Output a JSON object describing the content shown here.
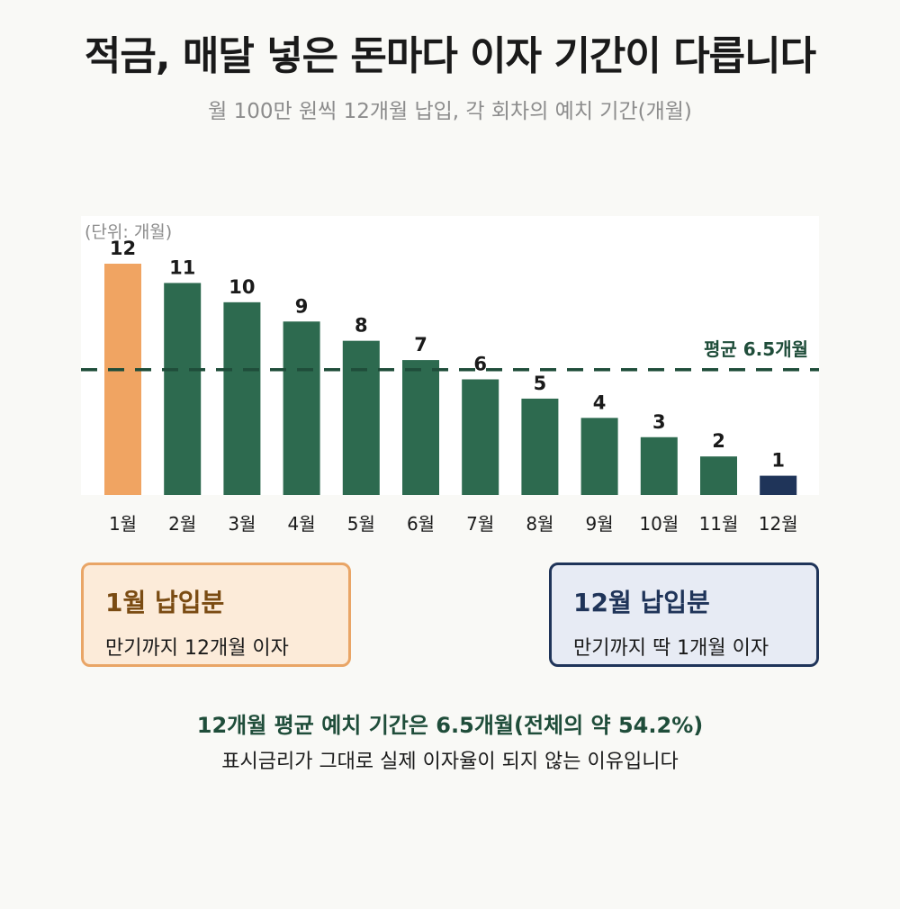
{
  "header": {
    "title": "적금, 매달 넣은 돈마다 이자 기간이 다릅니다",
    "subtitle": "월 100만 원씩 12개월 납입, 각 회차의 예치 기간(개월)"
  },
  "colors": {
    "first_bar": "#f0a462",
    "middle_bar": "#2d6a4f",
    "last_bar": "#1f3459",
    "average_line": "#1f4d3a"
  },
  "chart_data": {
    "type": "bar",
    "unit_label": "(단위: 개월)",
    "categories": [
      "1월",
      "2월",
      "3월",
      "4월",
      "5월",
      "6월",
      "7월",
      "8월",
      "9월",
      "10월",
      "11월",
      "12월"
    ],
    "values": [
      12,
      11,
      10,
      9,
      8,
      7,
      6,
      5,
      4,
      3,
      2,
      1
    ],
    "ylim": [
      0,
      12
    ],
    "grid": false,
    "average": {
      "value": 6.5,
      "label": "평균 6.5개월"
    }
  },
  "cards": {
    "left": {
      "title": "1월 납입분",
      "desc": "만기까지 12개월 이자"
    },
    "right": {
      "title": "12월 납입분",
      "desc": "만기까지 딱 1개월 이자"
    }
  },
  "summary": {
    "line1": "12개월 평균 예치 기간은 6.5개월(전체의 약 54.2%)",
    "line2": "표시금리가 그대로 실제 이자율이 되지 않는 이유입니다"
  }
}
